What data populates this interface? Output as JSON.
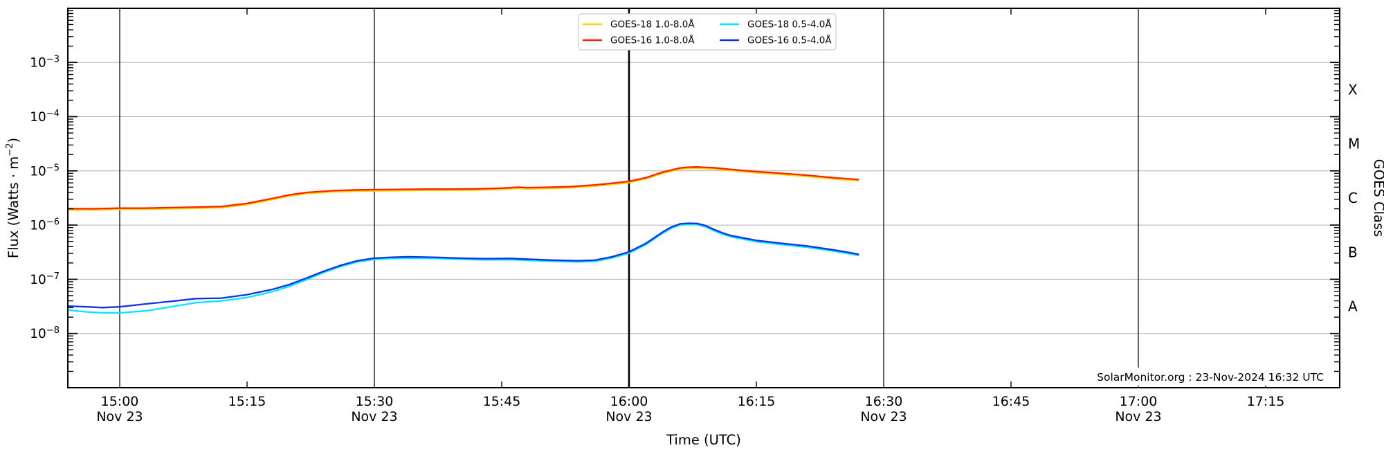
{
  "chart_data": {
    "type": "line",
    "title": "",
    "xlabel": "Time (UTC)",
    "ylabel": "Flux (Watts · m⁻²)",
    "ylabel_parts": {
      "prefix": "Flux (Watts · m",
      "sup": "−2",
      "close": ")"
    },
    "right_axis_label": "GOES Class",
    "attribution": "SolarMonitor.org : 23-Nov-2024 16:32 UTC",
    "x_axis_date": "Nov 23",
    "xlim": [
      "14:54",
      "17:24"
    ],
    "ylim": [
      1e-09,
      0.01
    ],
    "y_scale": "log",
    "y_tick_exponents": [
      -3,
      -4,
      -5,
      -6,
      -7,
      -8
    ],
    "goes_classes": [
      {
        "label": "X",
        "exp_center": -3.5
      },
      {
        "label": "M",
        "exp_center": -4.5
      },
      {
        "label": "C",
        "exp_center": -5.5
      },
      {
        "label": "B",
        "exp_center": -6.5
      },
      {
        "label": "A",
        "exp_center": -7.5
      }
    ],
    "x_ticks": [
      {
        "time": "15:00",
        "grid": true,
        "date": "Nov 23"
      },
      {
        "time": "15:15",
        "grid": false
      },
      {
        "time": "15:30",
        "grid": true,
        "date": "Nov 23"
      },
      {
        "time": "15:45",
        "grid": false
      },
      {
        "time": "16:00",
        "grid": true,
        "date": "Nov 23",
        "emphasis": true
      },
      {
        "time": "16:15",
        "grid": false
      },
      {
        "time": "16:30",
        "grid": true,
        "date": "Nov 23"
      },
      {
        "time": "16:45",
        "grid": false
      },
      {
        "time": "17:00",
        "grid": true,
        "date": "Nov 23"
      },
      {
        "time": "17:15",
        "grid": false
      }
    ],
    "series": [
      {
        "name": "GOES-18 1.0-8.0Å",
        "color": "#ffd400",
        "points": [
          [
            "14:54",
            1.9e-06
          ],
          [
            "14:57",
            1.9e-06
          ],
          [
            "15:00",
            1.95e-06
          ],
          [
            "15:03",
            1.95e-06
          ],
          [
            "15:06",
            2e-06
          ],
          [
            "15:09",
            2.04e-06
          ],
          [
            "15:12",
            2.09e-06
          ],
          [
            "15:15",
            2.38e-06
          ],
          [
            "15:18",
            2.95e-06
          ],
          [
            "15:20",
            3.42e-06
          ],
          [
            "15:22",
            3.8e-06
          ],
          [
            "15:25",
            4.09e-06
          ],
          [
            "15:28",
            4.23e-06
          ],
          [
            "15:30",
            4.28e-06
          ],
          [
            "15:33",
            4.32e-06
          ],
          [
            "15:36",
            4.37e-06
          ],
          [
            "15:39",
            4.37e-06
          ],
          [
            "15:42",
            4.42e-06
          ],
          [
            "15:45",
            4.56e-06
          ],
          [
            "15:47",
            4.75e-06
          ],
          [
            "15:48",
            4.66e-06
          ],
          [
            "15:50",
            4.7e-06
          ],
          [
            "15:53",
            4.85e-06
          ],
          [
            "15:56",
            5.23e-06
          ],
          [
            "15:58",
            5.61e-06
          ],
          [
            "16:00",
            6.08e-06
          ],
          [
            "16:02",
            7.13e-06
          ],
          [
            "16:04",
            9.03e-06
          ],
          [
            "16:06",
            1.07e-05
          ],
          [
            "16:07",
            1.11e-05
          ],
          [
            "16:08",
            1.12e-05
          ],
          [
            "16:10",
            1.08e-05
          ],
          [
            "16:12",
            1.01e-05
          ],
          [
            "16:15",
            9.22e-06
          ],
          [
            "16:18",
            8.55e-06
          ],
          [
            "16:21",
            7.89e-06
          ],
          [
            "16:24",
            7.13e-06
          ],
          [
            "16:27",
            6.56e-06
          ]
        ]
      },
      {
        "name": "GOES-16 1.0-8.0Å",
        "color": "#ff2200",
        "points": [
          [
            "14:54",
            2e-06
          ],
          [
            "14:57",
            2e-06
          ],
          [
            "15:00",
            2.05e-06
          ],
          [
            "15:03",
            2.05e-06
          ],
          [
            "15:06",
            2.1e-06
          ],
          [
            "15:09",
            2.15e-06
          ],
          [
            "15:12",
            2.2e-06
          ],
          [
            "15:15",
            2.5e-06
          ],
          [
            "15:18",
            3.1e-06
          ],
          [
            "15:20",
            3.6e-06
          ],
          [
            "15:22",
            4e-06
          ],
          [
            "15:25",
            4.3e-06
          ],
          [
            "15:28",
            4.45e-06
          ],
          [
            "15:30",
            4.5e-06
          ],
          [
            "15:33",
            4.55e-06
          ],
          [
            "15:36",
            4.6e-06
          ],
          [
            "15:39",
            4.6e-06
          ],
          [
            "15:42",
            4.65e-06
          ],
          [
            "15:45",
            4.8e-06
          ],
          [
            "15:47",
            5e-06
          ],
          [
            "15:48",
            4.9e-06
          ],
          [
            "15:50",
            4.95e-06
          ],
          [
            "15:53",
            5.1e-06
          ],
          [
            "15:56",
            5.5e-06
          ],
          [
            "15:58",
            5.9e-06
          ],
          [
            "16:00",
            6.4e-06
          ],
          [
            "16:02",
            7.5e-06
          ],
          [
            "16:04",
            9.5e-06
          ],
          [
            "16:06",
            1.13e-05
          ],
          [
            "16:07",
            1.17e-05
          ],
          [
            "16:08",
            1.18e-05
          ],
          [
            "16:10",
            1.14e-05
          ],
          [
            "16:12",
            1.06e-05
          ],
          [
            "16:15",
            9.7e-06
          ],
          [
            "16:18",
            9e-06
          ],
          [
            "16:21",
            8.3e-06
          ],
          [
            "16:24",
            7.5e-06
          ],
          [
            "16:27",
            6.9e-06
          ]
        ]
      },
      {
        "name": "GOES-18 0.5-4.0Å",
        "color": "#00e8ff",
        "points": [
          [
            "14:54",
            2.7e-08
          ],
          [
            "14:56",
            2.5e-08
          ],
          [
            "14:58",
            2.4e-08
          ],
          [
            "15:00",
            2.4e-08
          ],
          [
            "15:03",
            2.6e-08
          ],
          [
            "15:06",
            3.1e-08
          ],
          [
            "15:09",
            3.7e-08
          ],
          [
            "15:12",
            4e-08
          ],
          [
            "15:15",
            4.6e-08
          ],
          [
            "15:18",
            5.9e-08
          ],
          [
            "15:20",
            7.4e-08
          ],
          [
            "15:22",
            9.8e-08
          ],
          [
            "15:24",
            1.33e-07
          ],
          [
            "15:26",
            1.71e-07
          ],
          [
            "15:28",
            2.09e-07
          ],
          [
            "15:30",
            2.33e-07
          ],
          [
            "15:32",
            2.42e-07
          ],
          [
            "15:34",
            2.47e-07
          ],
          [
            "15:37",
            2.42e-07
          ],
          [
            "15:40",
            2.33e-07
          ],
          [
            "15:43",
            2.28e-07
          ],
          [
            "15:46",
            2.3e-07
          ],
          [
            "15:48",
            2.23e-07
          ],
          [
            "15:51",
            2.14e-07
          ],
          [
            "15:54",
            2.09e-07
          ],
          [
            "15:56",
            2.14e-07
          ],
          [
            "15:58",
            2.47e-07
          ],
          [
            "16:00",
            3.04e-07
          ],
          [
            "16:02",
            4.37e-07
          ],
          [
            "16:04",
            7.13e-07
          ],
          [
            "16:05",
            8.74e-07
          ],
          [
            "16:06",
            1e-06
          ],
          [
            "16:07",
            1.03e-06
          ],
          [
            "16:08",
            1.02e-06
          ],
          [
            "16:09",
            9.31e-07
          ],
          [
            "16:10",
            7.89e-07
          ],
          [
            "16:11",
            6.84e-07
          ],
          [
            "16:12",
            6.08e-07
          ],
          [
            "16:15",
            4.94e-07
          ],
          [
            "16:18",
            4.37e-07
          ],
          [
            "16:21",
            3.9e-07
          ],
          [
            "16:24",
            3.33e-07
          ],
          [
            "16:26",
            2.95e-07
          ],
          [
            "16:27",
            2.76e-07
          ]
        ]
      },
      {
        "name": "GOES-16 0.5-4.0Å",
        "color": "#1330e8",
        "points": [
          [
            "14:54",
            3.2e-08
          ],
          [
            "14:56",
            3.1e-08
          ],
          [
            "14:58",
            3e-08
          ],
          [
            "15:00",
            3.1e-08
          ],
          [
            "15:03",
            3.5e-08
          ],
          [
            "15:06",
            3.9e-08
          ],
          [
            "15:09",
            4.4e-08
          ],
          [
            "15:12",
            4.5e-08
          ],
          [
            "15:15",
            5.2e-08
          ],
          [
            "15:18",
            6.5e-08
          ],
          [
            "15:20",
            8e-08
          ],
          [
            "15:22",
            1.05e-07
          ],
          [
            "15:24",
            1.4e-07
          ],
          [
            "15:26",
            1.8e-07
          ],
          [
            "15:28",
            2.2e-07
          ],
          [
            "15:30",
            2.45e-07
          ],
          [
            "15:32",
            2.55e-07
          ],
          [
            "15:34",
            2.6e-07
          ],
          [
            "15:37",
            2.55e-07
          ],
          [
            "15:40",
            2.45e-07
          ],
          [
            "15:43",
            2.4e-07
          ],
          [
            "15:46",
            2.42e-07
          ],
          [
            "15:48",
            2.35e-07
          ],
          [
            "15:51",
            2.25e-07
          ],
          [
            "15:54",
            2.2e-07
          ],
          [
            "15:56",
            2.25e-07
          ],
          [
            "15:58",
            2.6e-07
          ],
          [
            "16:00",
            3.2e-07
          ],
          [
            "16:02",
            4.6e-07
          ],
          [
            "16:04",
            7.5e-07
          ],
          [
            "16:05",
            9.2e-07
          ],
          [
            "16:06",
            1.05e-06
          ],
          [
            "16:07",
            1.08e-06
          ],
          [
            "16:08",
            1.07e-06
          ],
          [
            "16:09",
            9.8e-07
          ],
          [
            "16:10",
            8.3e-07
          ],
          [
            "16:11",
            7.2e-07
          ],
          [
            "16:12",
            6.4e-07
          ],
          [
            "16:15",
            5.2e-07
          ],
          [
            "16:18",
            4.6e-07
          ],
          [
            "16:21",
            4.1e-07
          ],
          [
            "16:24",
            3.5e-07
          ],
          [
            "16:26",
            3.1e-07
          ],
          [
            "16:27",
            2.9e-07
          ]
        ]
      }
    ],
    "legend_position": "top-center",
    "grid": {
      "horizontal_decades": true,
      "vertical_half_hours": true
    }
  },
  "colors": {
    "goes18_long": "#ffd400",
    "goes16_long": "#ff2200",
    "goes18_short": "#00e8ff",
    "goes16_short": "#1330e8",
    "decade_gridline": "#b3b3b3",
    "time_gridline": "#1c1c1c"
  }
}
